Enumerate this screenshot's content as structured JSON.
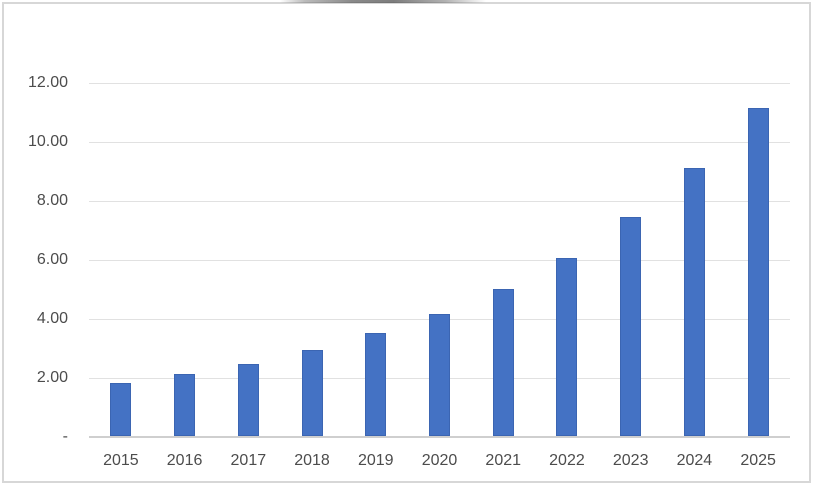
{
  "figure": {
    "background": "#ffffff",
    "frame_border_color": "#d7d7d7"
  },
  "chart_data": {
    "type": "bar",
    "title": "",
    "xlabel": "",
    "ylabel": "",
    "categories": [
      "2015",
      "2016",
      "2017",
      "2018",
      "2019",
      "2020",
      "2021",
      "2022",
      "2023",
      "2024",
      "2025"
    ],
    "values": [
      1.78,
      2.1,
      2.43,
      2.9,
      3.5,
      4.15,
      5.0,
      6.05,
      7.42,
      9.1,
      11.12
    ],
    "ylim": [
      0,
      12
    ],
    "yticks": [
      {
        "label": "12.00",
        "value": 12
      },
      {
        "label": "10.00",
        "value": 10
      },
      {
        "label": "8.00",
        "value": 8
      },
      {
        "label": "6.00",
        "value": 6
      },
      {
        "label": "4.00",
        "value": 4
      },
      {
        "label": "2.00",
        "value": 2
      },
      {
        "label": "-",
        "value": 0
      }
    ],
    "grid": true,
    "legend": false,
    "bar_color": "#4472C4",
    "bar_edge_color": "#3b65b2",
    "gridline_color": "#e1e1e1",
    "axis_line_color": "#cfcfcf",
    "tick_label_color": "#4c4c4c"
  }
}
